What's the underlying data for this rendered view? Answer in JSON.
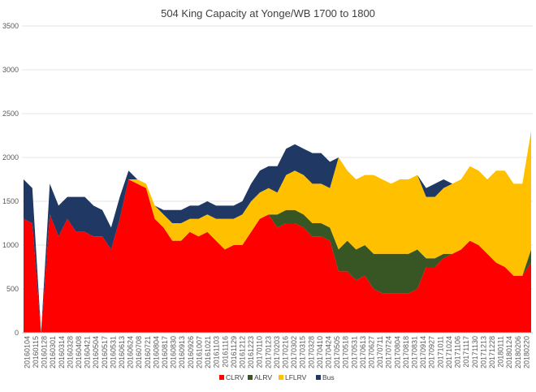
{
  "chart_data": {
    "type": "area",
    "stacked": true,
    "title": "504 King Capacity at Yonge/WB 1700 to 1800",
    "xlabel": "",
    "ylabel": "",
    "ylim": [
      0,
      3500
    ],
    "yticks": [
      0,
      500,
      1000,
      1500,
      2000,
      2500,
      3000,
      3500
    ],
    "grid": true,
    "legend_position": "bottom",
    "x_tick_labels": [
      "20160104",
      "20160115",
      "20160128",
      "20160301",
      "20160314",
      "20160328",
      "20160408",
      "20160421",
      "20160504",
      "20160517",
      "20160531",
      "20160613",
      "20160624",
      "20160708",
      "20160721",
      "20160804",
      "20160817",
      "20160830",
      "20160913",
      "20160926",
      "20161007",
      "20161021",
      "20161103",
      "20161116",
      "20161129",
      "20161212",
      "20161223",
      "20170110",
      "20170123",
      "20170203",
      "20170216",
      "20170302",
      "20170315",
      "20170328",
      "20170410",
      "20170424",
      "20170505",
      "20170518",
      "20170531",
      "20170613",
      "20170627",
      "20170711",
      "20170724",
      "20170804",
      "20170818",
      "20170831",
      "20170914",
      "20170927",
      "20171011",
      "20171024",
      "20171106",
      "20171117",
      "20171130",
      "20171213",
      "20171228",
      "20180111",
      "20180124",
      "20180206",
      "20180220"
    ],
    "x": [
      "20160104",
      "20160115",
      "20160128",
      "20160301",
      "20160314",
      "20160328",
      "20160408",
      "20160421",
      "20160504",
      "20160517",
      "20160531",
      "20160613",
      "20160624",
      "20160708",
      "20160721",
      "20160804",
      "20160817",
      "20160830",
      "20160913",
      "20160926",
      "20161007",
      "20161021",
      "20161103",
      "20161116",
      "20161129",
      "20161212",
      "20161223",
      "20170110",
      "20170123",
      "20170203",
      "20170216",
      "20170302",
      "20170315",
      "20170328",
      "20170410",
      "20170424",
      "20170505",
      "20170518",
      "20170531",
      "20170613",
      "20170627",
      "20170711",
      "20170724",
      "20170804",
      "20170818",
      "20170831",
      "20170914",
      "20170927",
      "20171011",
      "20171024",
      "20171106",
      "20171117",
      "20171130",
      "20171213",
      "20171228",
      "20180111",
      "20180124",
      "20180206",
      "20180220"
    ],
    "series": [
      {
        "name": "CLRV",
        "color": "#ff0000",
        "values": [
          1300,
          1250,
          0,
          1350,
          1100,
          1300,
          1150,
          1150,
          1100,
          1100,
          950,
          1300,
          1750,
          1700,
          1650,
          1300,
          1200,
          1050,
          1050,
          1150,
          1100,
          1150,
          1050,
          950,
          1000,
          1000,
          1150,
          1300,
          1350,
          1200,
          1250,
          1250,
          1200,
          1100,
          1100,
          1050,
          700,
          700,
          600,
          650,
          500,
          450,
          450,
          450,
          450,
          500,
          750,
          750,
          850,
          900,
          950,
          1050,
          1000,
          900,
          800,
          750,
          650,
          650,
          800
        ]
      },
      {
        "name": "ALRV",
        "color": "#375623",
        "values": [
          0,
          0,
          0,
          0,
          0,
          0,
          0,
          0,
          0,
          0,
          0,
          0,
          0,
          0,
          0,
          0,
          0,
          0,
          0,
          0,
          0,
          0,
          0,
          0,
          0,
          0,
          0,
          0,
          0,
          150,
          150,
          150,
          150,
          150,
          150,
          150,
          250,
          350,
          350,
          350,
          400,
          450,
          450,
          450,
          450,
          450,
          100,
          100,
          50,
          0,
          0,
          0,
          0,
          0,
          0,
          0,
          0,
          0,
          150
        ]
      },
      {
        "name": "LFLRV",
        "color": "#ffc000",
        "values": [
          0,
          0,
          0,
          0,
          0,
          0,
          0,
          0,
          0,
          0,
          0,
          0,
          0,
          50,
          50,
          150,
          150,
          200,
          200,
          150,
          200,
          200,
          250,
          350,
          300,
          350,
          350,
          300,
          300,
          250,
          400,
          450,
          450,
          450,
          450,
          450,
          1050,
          800,
          800,
          800,
          900,
          850,
          800,
          850,
          850,
          850,
          700,
          700,
          750,
          800,
          800,
          850,
          850,
          850,
          1050,
          1100,
          1050,
          1050,
          1350
        ]
      },
      {
        "name": "Bus",
        "color": "#203864",
        "values": [
          450,
          400,
          0,
          350,
          350,
          250,
          400,
          400,
          350,
          300,
          250,
          250,
          100,
          0,
          0,
          0,
          50,
          150,
          150,
          150,
          150,
          150,
          150,
          150,
          150,
          150,
          200,
          250,
          250,
          300,
          300,
          300,
          300,
          350,
          350,
          300,
          0,
          0,
          0,
          0,
          0,
          0,
          0,
          0,
          0,
          0,
          100,
          150,
          100,
          0,
          0,
          0,
          0,
          0,
          0,
          0,
          0,
          0,
          0
        ]
      }
    ]
  }
}
